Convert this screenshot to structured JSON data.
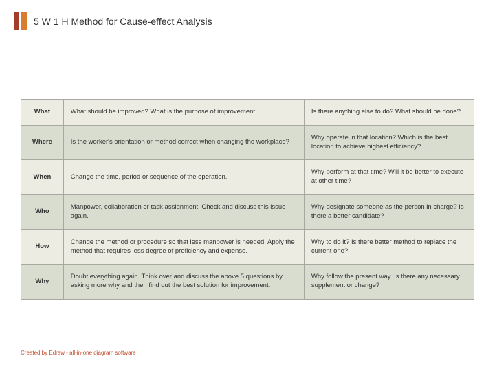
{
  "header": {
    "title": "5 W 1 H Method for Cause-effect Analysis",
    "bar_colors": [
      "#a33c28",
      "#d87c30"
    ]
  },
  "table": {
    "row_bg_colors": [
      "#ecece2",
      "#d8ddd0",
      "#ecece2",
      "#d8ddd0",
      "#ecece2",
      "#d8ddd0"
    ],
    "border_color": "#a8a8a0",
    "rows": [
      {
        "label": "What",
        "col2": "What should be improved? What is the purpose of improvement.",
        "col3": "Is there anything else to do? What should be done?"
      },
      {
        "label": "Where",
        "col2": "Is the worker's orientation or method correct when changing the workplace?",
        "col3": "Why operate in that location? Which is the best location to achieve highest efficiency?"
      },
      {
        "label": "When",
        "col2": "Change the time, period or sequence of the operation.",
        "col3": "Why perform at that time? Will it be better to execute at other time?"
      },
      {
        "label": "Who",
        "col2": "Manpower, collaboration or task assignment. Check and discuss this issue again.",
        "col3": "Why  designate someone as the person in charge? Is there a better candidate?"
      },
      {
        "label": "How",
        "col2": "Change the method or procedure so that less manpower is needed. Apply the method that requires less degree of proficiency and expense.",
        "col3": "Why to do it? Is there better method to replace the current one?"
      },
      {
        "label": "Why",
        "col2": "Doubt everything again. Think over and discuss the above 5 questions by asking more why and then find out the best solution for improvement.",
        "col3": "Why follow the present way. Is there any necessary supplement or change?"
      }
    ]
  },
  "footer": {
    "text": "Created by Edraw - all-in-one diagram software"
  }
}
